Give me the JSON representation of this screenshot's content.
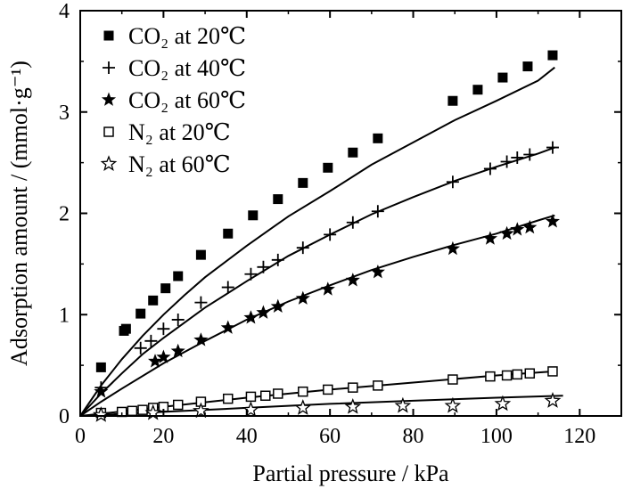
{
  "chart_data": {
    "type": "scatter",
    "title": "",
    "xlabel": "Partial pressure / kPa",
    "ylabel": "Adsorption amount / (mmol·g⁻¹)",
    "xlim": [
      0,
      130
    ],
    "ylim": [
      0,
      4
    ],
    "xticks": [
      0,
      20,
      40,
      60,
      80,
      100,
      120
    ],
    "yticks": [
      0,
      1,
      2,
      3,
      4
    ],
    "legend_position": "top-left",
    "grid": false,
    "series": [
      {
        "name": "CO₂ at 20℃",
        "marker": "filled-square",
        "x": [
          5,
          10.5,
          11,
          14.5,
          17.5,
          20.5,
          23.5,
          29,
          35.5,
          41.5,
          47.5,
          53.5,
          59.5,
          65.5,
          71.5,
          89.5,
          95.5,
          101.5,
          107.5,
          113.5
        ],
        "y": [
          0.48,
          0.84,
          0.86,
          1.01,
          1.14,
          1.26,
          1.38,
          1.59,
          1.8,
          1.98,
          2.14,
          2.3,
          2.45,
          2.6,
          2.74,
          3.11,
          3.22,
          3.34,
          3.45,
          3.56
        ]
      },
      {
        "name": "CO₂ at 40℃",
        "marker": "plus",
        "x": [
          5,
          14.5,
          17,
          20,
          23.5,
          29,
          35.5,
          41,
          44,
          47.5,
          53.5,
          60,
          65.5,
          71.5,
          89.5,
          98.5,
          102.5,
          105,
          108,
          113.5
        ],
        "y": [
          0.28,
          0.67,
          0.74,
          0.86,
          0.95,
          1.12,
          1.27,
          1.4,
          1.47,
          1.54,
          1.66,
          1.79,
          1.91,
          2.02,
          2.31,
          2.44,
          2.51,
          2.55,
          2.58,
          2.65
        ]
      },
      {
        "name": "CO₂ at 60℃",
        "marker": "filled-star",
        "x": [
          5,
          18,
          20,
          23.5,
          29,
          35.5,
          41,
          44,
          47.5,
          53.5,
          59.5,
          65.5,
          71.5,
          89.5,
          98.5,
          102.5,
          105,
          108,
          113.5
        ],
        "y": [
          0.24,
          0.54,
          0.58,
          0.64,
          0.75,
          0.87,
          0.97,
          1.02,
          1.08,
          1.16,
          1.25,
          1.34,
          1.42,
          1.65,
          1.75,
          1.8,
          1.84,
          1.86,
          1.92
        ]
      },
      {
        "name": "N₂ at 20℃",
        "marker": "open-square",
        "x": [
          5,
          10,
          12.5,
          15,
          17.5,
          20,
          23.5,
          29,
          35.5,
          41,
          44.5,
          47.5,
          53.5,
          59.5,
          65.5,
          71.5,
          89.5,
          98.5,
          102.5,
          105,
          108,
          113.5
        ],
        "y": [
          0.03,
          0.04,
          0.05,
          0.06,
          0.08,
          0.09,
          0.11,
          0.14,
          0.17,
          0.19,
          0.2,
          0.22,
          0.24,
          0.26,
          0.28,
          0.3,
          0.36,
          0.39,
          0.4,
          0.41,
          0.42,
          0.44
        ]
      },
      {
        "name": "N₂ at 60℃",
        "marker": "open-star",
        "x": [
          5,
          17.5,
          29,
          41,
          53.5,
          65.5,
          77.5,
          89.5,
          101.5,
          113.5
        ],
        "y": [
          0.01,
          0.03,
          0.05,
          0.06,
          0.08,
          0.09,
          0.1,
          0.1,
          0.12,
          0.15
        ]
      }
    ],
    "fit_curves": [
      {
        "for": "CO₂ at 20℃",
        "x": [
          0,
          5,
          10,
          15,
          20,
          25,
          30,
          40,
          50,
          60,
          70,
          80,
          90,
          100,
          110,
          114
        ],
        "y": [
          0,
          0.3,
          0.56,
          0.79,
          1.0,
          1.19,
          1.37,
          1.68,
          1.97,
          2.22,
          2.48,
          2.7,
          2.92,
          3.11,
          3.31,
          3.44
        ]
      },
      {
        "for": "CO₂ at 40℃",
        "x": [
          0,
          5,
          10,
          15,
          20,
          30,
          40,
          50,
          60,
          70,
          80,
          90,
          100,
          110,
          114
        ],
        "y": [
          0,
          0.22,
          0.42,
          0.61,
          0.77,
          1.07,
          1.33,
          1.58,
          1.79,
          1.99,
          2.16,
          2.32,
          2.46,
          2.59,
          2.65
        ]
      },
      {
        "for": "CO₂ at 60℃",
        "x": [
          0,
          5,
          10,
          20,
          30,
          40,
          50,
          60,
          70,
          80,
          90,
          100,
          110,
          114
        ],
        "y": [
          0,
          0.14,
          0.27,
          0.52,
          0.74,
          0.95,
          1.13,
          1.29,
          1.44,
          1.57,
          1.69,
          1.8,
          1.93,
          1.98
        ]
      },
      {
        "for": "N₂ at 20℃",
        "x": [
          0,
          20,
          40,
          60,
          80,
          100,
          114
        ],
        "y": [
          0,
          0.09,
          0.18,
          0.26,
          0.33,
          0.4,
          0.44
        ]
      },
      {
        "for": "N₂ at 60℃",
        "x": [
          0,
          20,
          40,
          60,
          80,
          100,
          116
        ],
        "y": [
          0,
          0.04,
          0.08,
          0.12,
          0.15,
          0.18,
          0.2
        ]
      }
    ]
  }
}
